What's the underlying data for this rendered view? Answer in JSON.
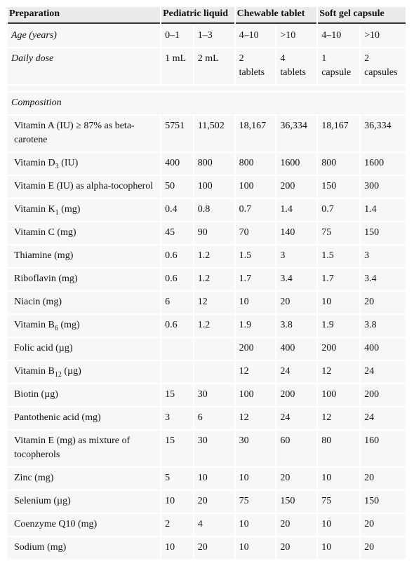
{
  "table": {
    "header": [
      "Preparation",
      "Pediatric liquid",
      "Chewable tablet",
      "Soft gel capsule"
    ],
    "age": {
      "label": "Age (years)",
      "values": [
        "0–1",
        "1–3",
        "4–10",
        ">10",
        "4–10",
        ">10"
      ]
    },
    "dose": {
      "label": "Daily dose",
      "values": [
        "1 mL",
        "2 mL",
        "2 tablets",
        "4 tablets",
        "1 capsule",
        "2 capsules"
      ]
    },
    "section": "Composition",
    "rows": [
      {
        "label": "Vitamin A (IU) ≥ 87% as beta-carotene",
        "values": [
          "5751",
          "11,502",
          "18,167",
          "36,334",
          "18,167",
          "36,334"
        ]
      },
      {
        "label": {
          "name": "Vitamin D",
          "sub": "3",
          "unit": " (IU)"
        },
        "values": [
          "400",
          "800",
          "800",
          "1600",
          "800",
          "1600"
        ]
      },
      {
        "label": "Vitamin E (IU) as alpha-tocopherol",
        "values": [
          "50",
          "100",
          "100",
          "200",
          "150",
          "300"
        ]
      },
      {
        "label": {
          "name": "Vitamin K",
          "sub": "1",
          "unit": " (mg)"
        },
        "values": [
          "0.4",
          "0.8",
          "0.7",
          "1.4",
          "0.7",
          "1.4"
        ]
      },
      {
        "label": "Vitamin C (mg)",
        "values": [
          "45",
          "90",
          "70",
          "140",
          "75",
          "150"
        ]
      },
      {
        "label": "Thiamine (mg)",
        "values": [
          "0.6",
          "1.2",
          "1.5",
          "3",
          "1.5",
          "3"
        ]
      },
      {
        "label": "Riboflavin (mg)",
        "values": [
          "0.6",
          "1.2",
          "1.7",
          "3.4",
          "1.7",
          "3.4"
        ]
      },
      {
        "label": "Niacin (mg)",
        "values": [
          "6",
          "12",
          "10",
          "20",
          "10",
          "20"
        ]
      },
      {
        "label": {
          "name": "Vitamin B",
          "sub": "6",
          "unit": " (mg)"
        },
        "values": [
          "0.6",
          "1.2",
          "1.9",
          "3.8",
          "1.9",
          "3.8"
        ]
      },
      {
        "label": "Folic acid (µg)",
        "values": [
          null,
          null,
          "200",
          "400",
          "200",
          "400"
        ]
      },
      {
        "label": {
          "name": "Vitamin B",
          "sub": "12",
          "unit": " (µg)"
        },
        "values": [
          null,
          null,
          "12",
          "24",
          "12",
          "24"
        ]
      },
      {
        "label": "Biotin (µg)",
        "values": [
          "15",
          "30",
          "100",
          "200",
          "100",
          "200"
        ]
      },
      {
        "label": "Pantothenic acid (mg)",
        "values": [
          "3",
          "6",
          "12",
          "24",
          "12",
          "24"
        ]
      },
      {
        "label": "Vitamin E (mg) as mixture of tocopherols",
        "values": [
          "15",
          "30",
          "30",
          "60",
          "80",
          "160"
        ]
      },
      {
        "label": "Zinc (mg)",
        "values": [
          "5",
          "10",
          "10",
          "20",
          "10",
          "20"
        ]
      },
      {
        "label": "Selenium (µg)",
        "values": [
          "10",
          "20",
          "75",
          "150",
          "75",
          "150"
        ]
      },
      {
        "label": "Coenzyme Q10 (mg)",
        "values": [
          "2",
          "4",
          "10",
          "20",
          "10",
          "20"
        ]
      },
      {
        "label": "Sodium (mg)",
        "values": [
          "10",
          "20",
          "10",
          "20",
          "10",
          "20"
        ]
      }
    ]
  }
}
